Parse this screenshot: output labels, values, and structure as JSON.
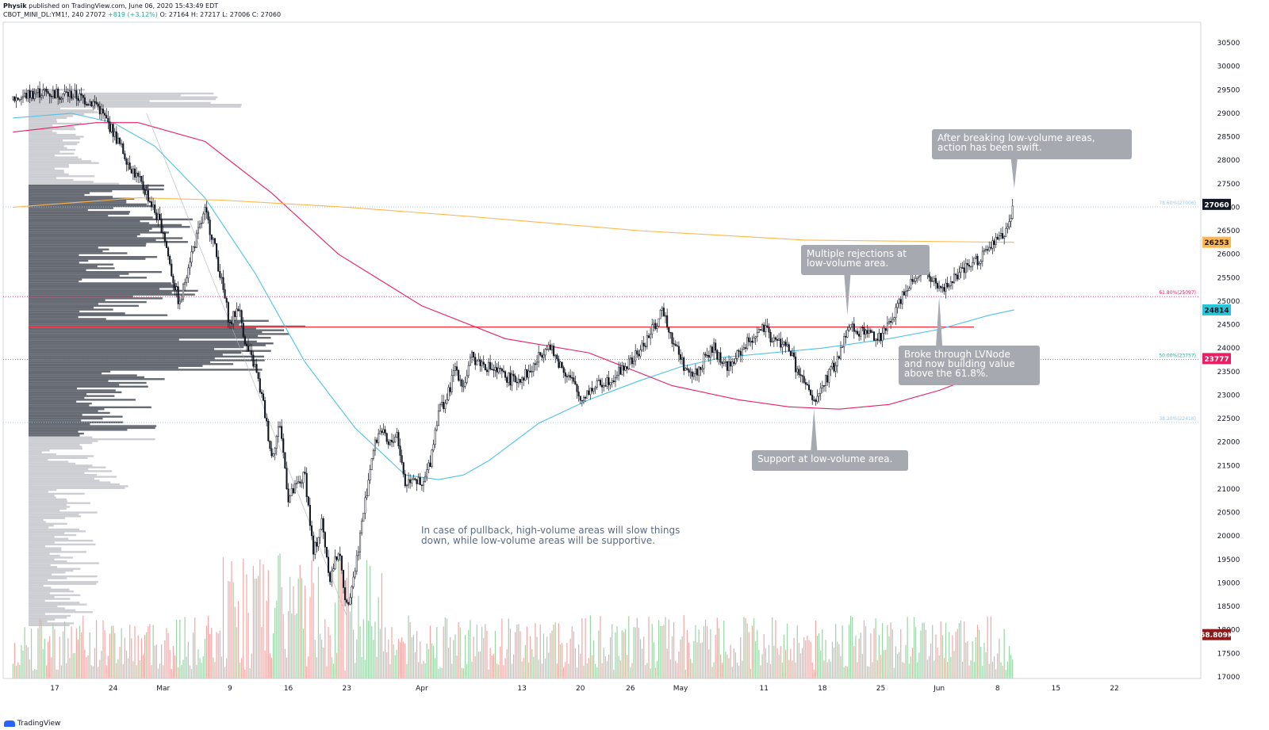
{
  "header": {
    "author": "Physik",
    "published": "published on TradingView.com, June 06, 2020 15:43:49 EDT",
    "symbol": "CBOT_MINI_DL:YM1!, 240",
    "last": "27072",
    "change": "+819 (+3.12%)",
    "ohlc_o": "O: 27164",
    "ohlc_h": "H: 27217",
    "ohlc_l": "L: 27006",
    "ohlc_c": "C: 27060"
  },
  "footer": {
    "brand": "TradingView"
  },
  "colors": {
    "up": "#26a69a",
    "down": "#ef5350",
    "candle": "#131722",
    "ma_blue": "#4dc2e6",
    "ma_pink": "#e91e63",
    "ma_orange": "#ffb74d",
    "poc": "#f23645",
    "annotation_bg": "#a6a9b0",
    "volume_up": "#9cd3a9",
    "volume_down": "#f2a7a7"
  },
  "chart_data": {
    "type": "candlestick",
    "y_axis": {
      "min": 17000,
      "max": 30500,
      "ticks": [
        30500,
        30000,
        29500,
        29000,
        28500,
        28000,
        27500,
        27000,
        26500,
        26000,
        25500,
        25000,
        24500,
        24000,
        23500,
        23000,
        22500,
        22000,
        21500,
        21000,
        20500,
        20000,
        19500,
        19000,
        18500,
        18000,
        17500,
        17000
      ]
    },
    "x_labels": [
      {
        "label": "17",
        "day": 0
      },
      {
        "label": "24",
        "day": 7
      },
      {
        "label": "Mar",
        "day": 13
      },
      {
        "label": "9",
        "day": 21
      },
      {
        "label": "16",
        "day": 28
      },
      {
        "label": "23",
        "day": 35
      },
      {
        "label": "Apr",
        "day": 44
      },
      {
        "label": "13",
        "day": 56
      },
      {
        "label": "20",
        "day": 63
      },
      {
        "label": "26",
        "day": 69
      },
      {
        "label": "May",
        "day": 75
      },
      {
        "label": "11",
        "day": 85
      },
      {
        "label": "18",
        "day": 92
      },
      {
        "label": "25",
        "day": 99
      },
      {
        "label": "Jun",
        "day": 106
      },
      {
        "label": "8",
        "day": 113
      },
      {
        "label": "15",
        "day": 120
      },
      {
        "label": "22",
        "day": 127
      }
    ],
    "price_path": [
      [
        -5,
        29300
      ],
      [
        -2,
        29450
      ],
      [
        2,
        29400
      ],
      [
        5,
        29200
      ],
      [
        6,
        28900
      ],
      [
        7,
        28600
      ],
      [
        9,
        27900
      ],
      [
        11,
        27300
      ],
      [
        13,
        26500
      ],
      [
        14,
        25600
      ],
      [
        15,
        24900
      ],
      [
        16,
        25800
      ],
      [
        18,
        26900
      ],
      [
        19,
        26300
      ],
      [
        21,
        24500
      ],
      [
        22,
        24900
      ],
      [
        23,
        24000
      ],
      [
        24,
        23600
      ],
      [
        25,
        22800
      ],
      [
        26,
        21700
      ],
      [
        27,
        22400
      ],
      [
        28,
        20800
      ],
      [
        30,
        21300
      ],
      [
        31,
        19600
      ],
      [
        32,
        20300
      ],
      [
        33,
        19100
      ],
      [
        34,
        19700
      ],
      [
        35,
        18500
      ],
      [
        36,
        19300
      ],
      [
        37,
        20500
      ],
      [
        38,
        21700
      ],
      [
        39,
        22300
      ],
      [
        40,
        21900
      ],
      [
        41,
        22200
      ],
      [
        42,
        21100
      ],
      [
        43,
        21300
      ],
      [
        44,
        21000
      ],
      [
        45,
        21600
      ],
      [
        46,
        22700
      ],
      [
        47,
        22900
      ],
      [
        48,
        23600
      ],
      [
        49,
        23200
      ],
      [
        50,
        23800
      ],
      [
        51,
        23700
      ],
      [
        53,
        23500
      ],
      [
        55,
        23300
      ],
      [
        57,
        23500
      ],
      [
        59,
        24100
      ],
      [
        60,
        23800
      ],
      [
        62,
        23300
      ],
      [
        63,
        22900
      ],
      [
        64,
        23100
      ],
      [
        66,
        23300
      ],
      [
        67,
        23400
      ],
      [
        69,
        23700
      ],
      [
        70,
        23900
      ],
      [
        72,
        24500
      ],
      [
        73,
        24800
      ],
      [
        74,
        24200
      ],
      [
        75,
        23800
      ],
      [
        76,
        23400
      ],
      [
        77,
        23500
      ],
      [
        78,
        23800
      ],
      [
        79,
        24000
      ],
      [
        80,
        23700
      ],
      [
        81,
        23600
      ],
      [
        82,
        23900
      ],
      [
        84,
        24300
      ],
      [
        85,
        24400
      ],
      [
        86,
        24200
      ],
      [
        88,
        24000
      ],
      [
        89,
        23500
      ],
      [
        90,
        23200
      ],
      [
        91,
        22800
      ],
      [
        92,
        23200
      ],
      [
        93,
        23500
      ],
      [
        94,
        23800
      ],
      [
        95,
        24500
      ],
      [
        96,
        24400
      ],
      [
        98,
        24300
      ],
      [
        99,
        24200
      ],
      [
        100,
        24500
      ],
      [
        101,
        24900
      ],
      [
        102,
        25300
      ],
      [
        104,
        25700
      ],
      [
        105,
        25500
      ],
      [
        106,
        25200
      ],
      [
        108,
        25500
      ],
      [
        110,
        25800
      ],
      [
        112,
        26100
      ],
      [
        113,
        26300
      ],
      [
        114,
        26500
      ],
      [
        115,
        27000
      ]
    ],
    "moving_averages": [
      {
        "color_key": "ma_blue",
        "points": [
          [
            -5,
            28900
          ],
          [
            2,
            29000
          ],
          [
            7,
            28800
          ],
          [
            12,
            28300
          ],
          [
            18,
            27200
          ],
          [
            24,
            25600
          ],
          [
            30,
            23700
          ],
          [
            36,
            22300
          ],
          [
            42,
            21300
          ],
          [
            46,
            21200
          ],
          [
            49,
            21300
          ],
          [
            52,
            21600
          ],
          [
            58,
            22400
          ],
          [
            64,
            22900
          ],
          [
            70,
            23300
          ],
          [
            75,
            23600
          ],
          [
            80,
            23800
          ],
          [
            86,
            23900
          ],
          [
            92,
            24000
          ],
          [
            100,
            24200
          ],
          [
            106,
            24400
          ],
          [
            112,
            24700
          ],
          [
            115,
            24814
          ]
        ]
      },
      {
        "color_key": "ma_pink",
        "points": [
          [
            -5,
            28600
          ],
          [
            5,
            28800
          ],
          [
            10,
            28800
          ],
          [
            18,
            28400
          ],
          [
            26,
            27300
          ],
          [
            34,
            26000
          ],
          [
            44,
            24900
          ],
          [
            54,
            24200
          ],
          [
            64,
            23900
          ],
          [
            74,
            23200
          ],
          [
            82,
            22900
          ],
          [
            88,
            22750
          ],
          [
            94,
            22700
          ],
          [
            100,
            22800
          ],
          [
            106,
            23100
          ],
          [
            112,
            23500
          ],
          [
            115,
            23777
          ]
        ]
      },
      {
        "color_key": "ma_orange",
        "points": [
          [
            -5,
            27000
          ],
          [
            10,
            27200
          ],
          [
            20,
            27150
          ],
          [
            35,
            27000
          ],
          [
            50,
            26800
          ],
          [
            70,
            26500
          ],
          [
            90,
            26300
          ],
          [
            115,
            26253
          ]
        ]
      }
    ],
    "horizontal_levels": [
      {
        "price": 27006,
        "label": "78.60%(27006)",
        "color": "#90caf9",
        "style": "dotted"
      },
      {
        "price": 25097,
        "label": "61.80%(25097)",
        "color": "#e91e63",
        "style": "dotted"
      },
      {
        "price": 23757,
        "label": "50.00%(23757)",
        "color": "#26a69a",
        "style": "dotted"
      },
      {
        "price": 22416,
        "label": "38.20%(22416)",
        "color": "#90caf9",
        "style": "dotted"
      },
      {
        "price": 24450,
        "label": "",
        "color": "#f23645",
        "style": "solid"
      }
    ],
    "price_tags": [
      {
        "price": 27060,
        "label": "27060",
        "bg": "#131722",
        "fg": "#ffffff"
      },
      {
        "price": 26253,
        "label": "26253",
        "bg": "#ffb74d",
        "fg": "#131722"
      },
      {
        "price": 24814,
        "label": "24814",
        "bg": "#26c6da",
        "fg": "#131722"
      },
      {
        "price": 23777,
        "label": "23777",
        "bg": "#e91e63",
        "fg": "#ffffff"
      },
      {
        "price": 17900,
        "label": "68.809K",
        "bg": "#8b1a1a",
        "fg": "#ffffff"
      }
    ],
    "annotations": [
      {
        "lines": [
          "After breaking low-volume areas,",
          "action has been swift."
        ],
        "pointer": "down",
        "anchor_day": 115,
        "anchor_price": 27400,
        "box": "top-right"
      },
      {
        "lines": [
          "Multiple rejections at",
          "low-volume area."
        ],
        "pointer": "down",
        "anchor_day": 95,
        "anchor_price": 24700,
        "box": "mid"
      },
      {
        "lines": [
          "Broke through LVNode",
          "and now building value",
          "above the 61.8%."
        ],
        "pointer": "up",
        "anchor_day": 106,
        "anchor_price": 25100,
        "box": "right"
      },
      {
        "lines": [
          "Support at low-volume area."
        ],
        "pointer": "up",
        "anchor_day": 91,
        "anchor_price": 22700,
        "box": "bottom"
      }
    ],
    "note": [
      "In case of pullback, high-volume areas will slow things",
      "down, while low-volume areas will be supportive."
    ]
  }
}
